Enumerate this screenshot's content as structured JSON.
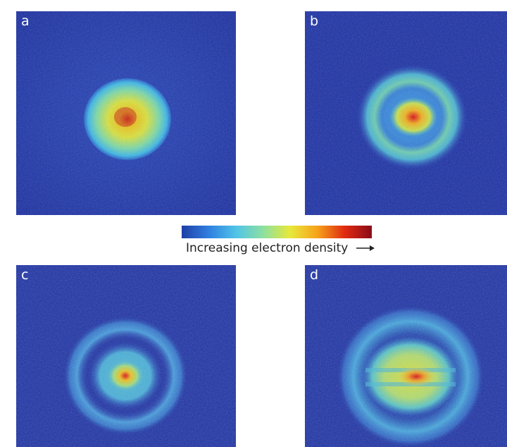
{
  "panels": [
    {
      "label": "a"
    },
    {
      "label": "b"
    },
    {
      "label": "c"
    },
    {
      "label": "d"
    }
  ],
  "colorbar": {
    "caption": "Increasing electron density",
    "arrow_icon": "right-arrow-icon",
    "colors": [
      "#1f3ea6",
      "#2f7fe0",
      "#4fc4e8",
      "#8de0a0",
      "#e8e83a",
      "#f7a21a",
      "#e02a10",
      "#8a0c18"
    ]
  },
  "colors": {
    "background_field": "#2135a8"
  }
}
